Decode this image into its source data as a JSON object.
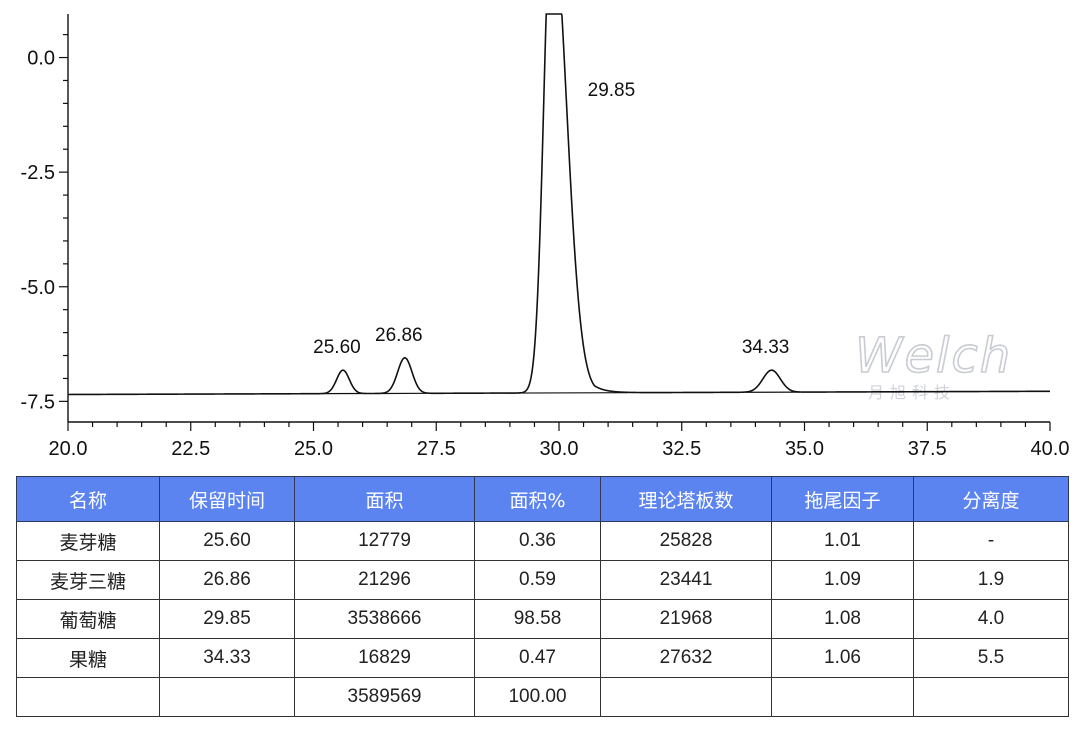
{
  "chart_data": {
    "type": "line",
    "title": "",
    "xlabel": "",
    "ylabel": "",
    "xlim": [
      20.0,
      40.0
    ],
    "ylim": [
      -7.95,
      0.95
    ],
    "x_ticks": [
      "20.0",
      "22.5",
      "25.0",
      "27.5",
      "30.0",
      "32.5",
      "35.0",
      "37.5",
      "40.0"
    ],
    "y_ticks": [
      "0.0",
      "-2.5",
      "-5.0",
      "-7.5"
    ],
    "grid": false,
    "baseline": [
      [
        20.0,
        -7.35
      ],
      [
        40.0,
        -7.28
      ]
    ],
    "peaks": [
      {
        "label": "25.60",
        "rt": 25.6,
        "start": 25.2,
        "end": 26.0,
        "apex": -6.82
      },
      {
        "label": "26.86",
        "rt": 26.86,
        "start": 26.4,
        "end": 27.3,
        "apex": -6.55
      },
      {
        "label": "29.85",
        "rt": 29.85,
        "start": 29.0,
        "end": 31.4,
        "apex": 3.2
      },
      {
        "label": "34.33",
        "rt": 34.33,
        "start": 33.8,
        "end": 34.9,
        "apex": -6.82
      }
    ]
  },
  "watermark": {
    "brand": "Welch",
    "subtitle": "月旭科技"
  },
  "table": {
    "headers": [
      "名称",
      "保留时间",
      "面积",
      "面积%",
      "理论塔板数",
      "拖尾因子",
      "分离度"
    ],
    "rows": [
      [
        "麦芽糖",
        "25.60",
        "12779",
        "0.36",
        "25828",
        "1.01",
        "-"
      ],
      [
        "麦芽三糖",
        "26.86",
        "21296",
        "0.59",
        "23441",
        "1.09",
        "1.9"
      ],
      [
        "葡萄糖",
        "29.85",
        "3538666",
        "98.58",
        "21968",
        "1.08",
        "4.0"
      ],
      [
        "果糖",
        "34.33",
        "16829",
        "0.47",
        "27632",
        "1.06",
        "5.5"
      ],
      [
        "",
        "",
        "3589569",
        "100.00",
        "",
        "",
        ""
      ]
    ]
  },
  "colors": {
    "header_bg": "#5b84f0",
    "header_text": "#ffffff",
    "trace": "#111111"
  }
}
